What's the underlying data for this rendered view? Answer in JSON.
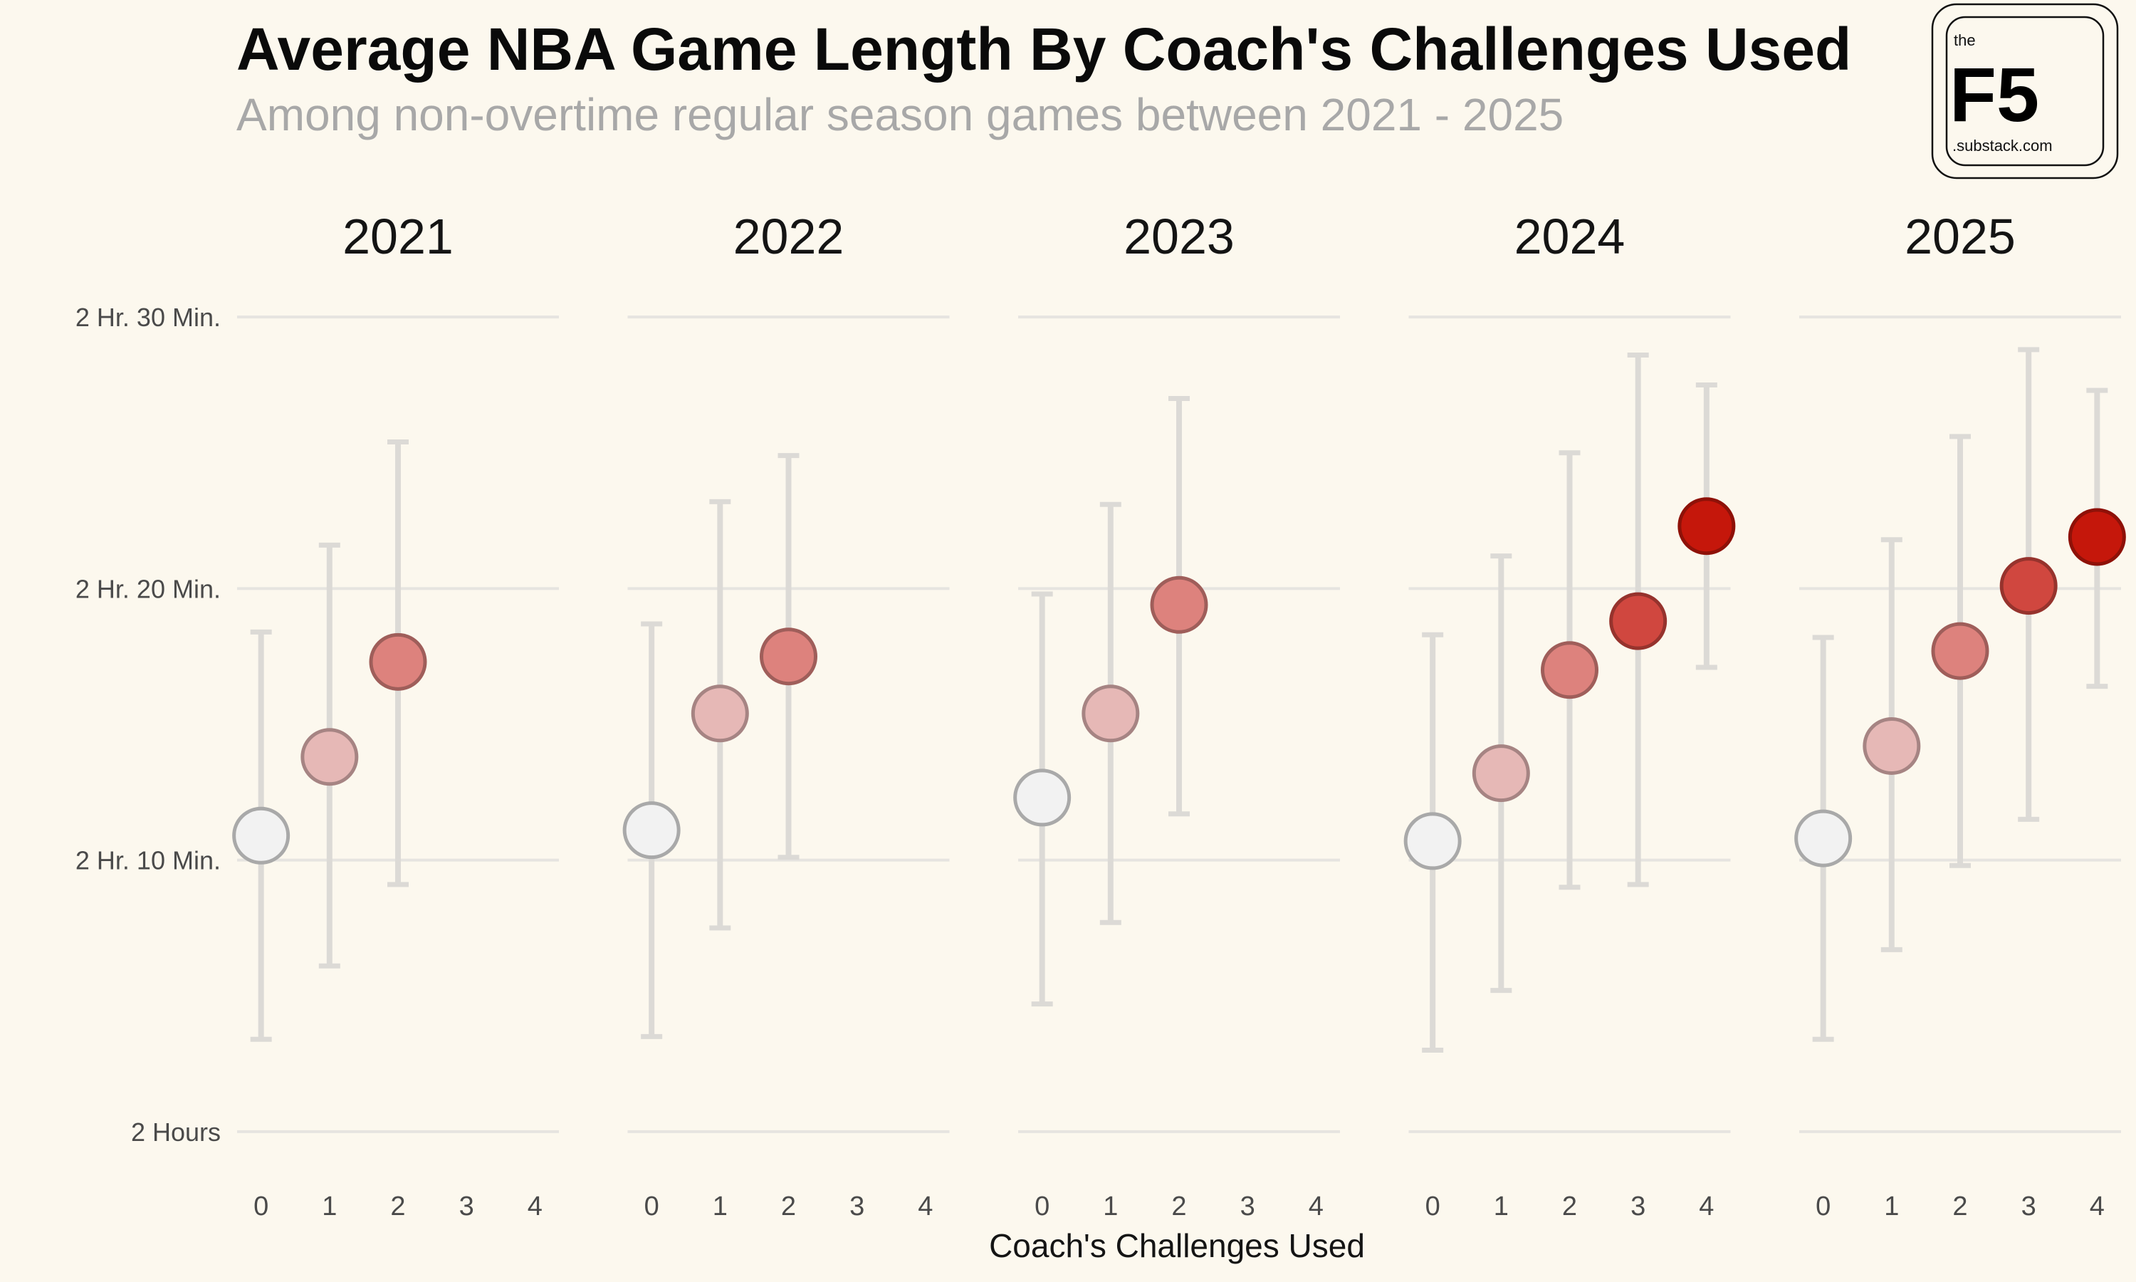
{
  "header": {
    "title": "Average NBA Game Length By Coach's Challenges Used",
    "subtitle": "Among non-overtime regular season games between 2021 - 2025"
  },
  "logo": {
    "small": "the",
    "big": "F5",
    "url": ".substack.com"
  },
  "colors": {
    "background": "#fcf8ee",
    "grid": "#e6e4e0",
    "errorbar": "#dcdad6",
    "challenges_0": "#f2f2f2",
    "challenges_1": "#e6b8b6",
    "challenges_2": "#dd827d",
    "challenges_3": "#d0473f",
    "challenges_4": "#c5170b"
  },
  "chart_data": {
    "type": "scatter",
    "title": "Average NBA Game Length By Coach's Challenges Used",
    "subtitle": "Among non-overtime regular season games between 2021 - 2025",
    "xlabel": "Coach's Challenges Used",
    "ylabel": "",
    "x_ticks": [
      "0",
      "1",
      "2",
      "3",
      "4"
    ],
    "y_ticks": [
      {
        "value": 120,
        "label": "2 Hours"
      },
      {
        "value": 130,
        "label": "2 Hr. 10 Min."
      },
      {
        "value": 140,
        "label": "2 Hr. 20 Min."
      },
      {
        "value": 150,
        "label": "2 Hr. 30 Min."
      }
    ],
    "ylim": [
      118.5,
      151.5
    ],
    "xlim": [
      -0.35,
      4.35
    ],
    "y_units": "minutes",
    "grid": true,
    "legend": "none",
    "error_bars": true,
    "facets": [
      {
        "label": "2021",
        "points": [
          {
            "x": 0,
            "mean": 130.9,
            "low": 123.4,
            "high": 138.4
          },
          {
            "x": 1,
            "mean": 133.8,
            "low": 126.1,
            "high": 141.6
          },
          {
            "x": 2,
            "mean": 137.3,
            "low": 129.1,
            "high": 145.4
          }
        ]
      },
      {
        "label": "2022",
        "points": [
          {
            "x": 0,
            "mean": 131.1,
            "low": 123.5,
            "high": 138.7
          },
          {
            "x": 1,
            "mean": 135.4,
            "low": 127.5,
            "high": 143.2
          },
          {
            "x": 2,
            "mean": 137.5,
            "low": 130.1,
            "high": 144.9
          }
        ]
      },
      {
        "label": "2023",
        "points": [
          {
            "x": 0,
            "mean": 132.3,
            "low": 124.7,
            "high": 139.8
          },
          {
            "x": 1,
            "mean": 135.4,
            "low": 127.7,
            "high": 143.1
          },
          {
            "x": 2,
            "mean": 139.4,
            "low": 131.7,
            "high": 147.0
          }
        ]
      },
      {
        "label": "2024",
        "points": [
          {
            "x": 0,
            "mean": 130.7,
            "low": 123.0,
            "high": 138.3
          },
          {
            "x": 1,
            "mean": 133.2,
            "low": 125.2,
            "high": 141.2
          },
          {
            "x": 2,
            "mean": 137.0,
            "low": 129.0,
            "high": 145.0
          },
          {
            "x": 3,
            "mean": 138.8,
            "low": 129.1,
            "high": 148.6
          },
          {
            "x": 4,
            "mean": 142.3,
            "low": 137.1,
            "high": 147.5
          }
        ]
      },
      {
        "label": "2025",
        "points": [
          {
            "x": 0,
            "mean": 130.8,
            "low": 123.4,
            "high": 138.2
          },
          {
            "x": 1,
            "mean": 134.2,
            "low": 126.7,
            "high": 141.8
          },
          {
            "x": 2,
            "mean": 137.7,
            "low": 129.8,
            "high": 145.6
          },
          {
            "x": 3,
            "mean": 140.1,
            "low": 131.5,
            "high": 148.8
          },
          {
            "x": 4,
            "mean": 141.9,
            "low": 136.4,
            "high": 147.3
          }
        ]
      }
    ]
  }
}
